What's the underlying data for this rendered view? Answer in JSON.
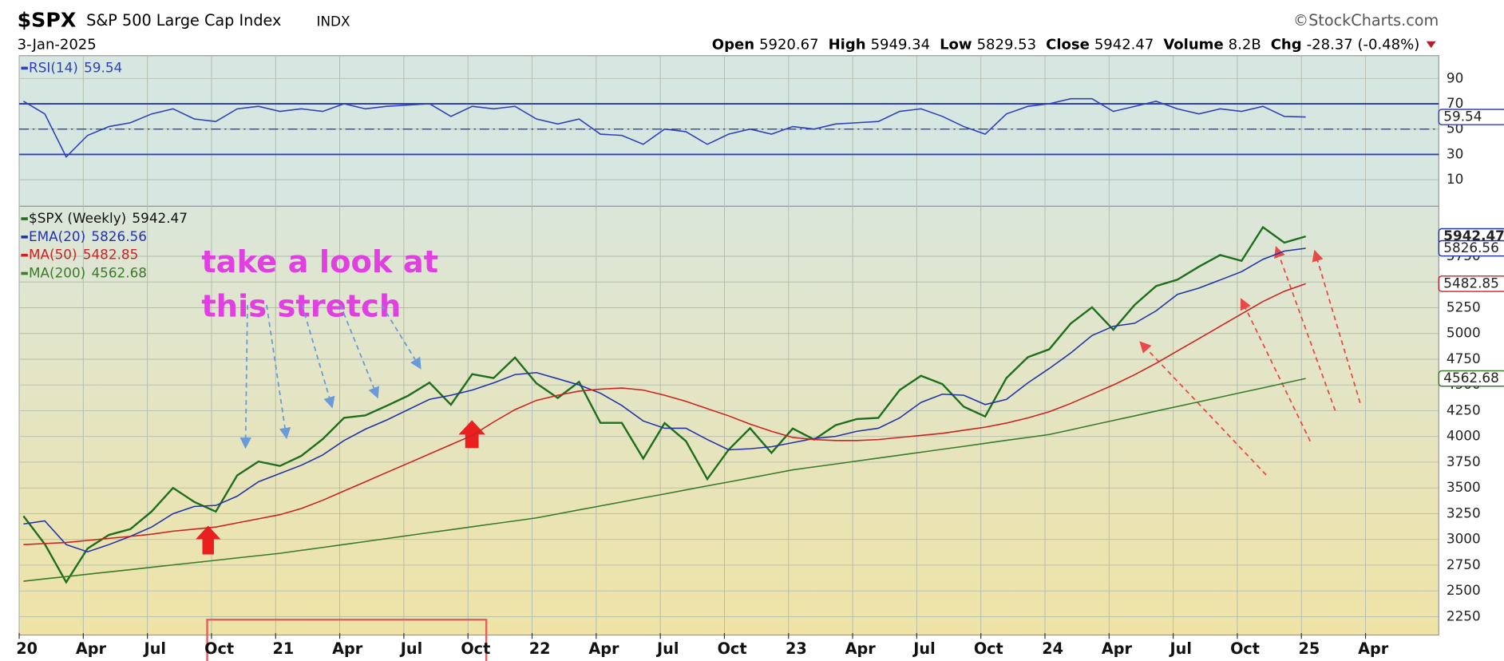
{
  "header": {
    "symbol": "$SPX",
    "name": "S&P 500 Large Cap Index",
    "exchange": "INDX",
    "date": "3-Jan-2025",
    "source": "©StockCharts.com",
    "quote": [
      {
        "label": "Open",
        "value": 5920.67
      },
      {
        "label": "High",
        "value": 5949.34
      },
      {
        "label": "Low",
        "value": 5829.53
      },
      {
        "label": "Close",
        "value": 5942.47
      },
      {
        "label": "Volume",
        "value": "8.2B"
      },
      {
        "label": "Chg",
        "value": "-28.37 (-0.48%)"
      }
    ]
  },
  "annotation": [
    "take a look at",
    "this stretch"
  ],
  "chart_data": [
    {
      "type": "line",
      "x": [
        "2020-01",
        "2020-02",
        "2020-03",
        "2020-04",
        "2020-05",
        "2020-06",
        "2020-07",
        "2020-08",
        "2020-09",
        "2020-10",
        "2020-11",
        "2020-12",
        "2021-01",
        "2021-02",
        "2021-03",
        "2021-04",
        "2021-05",
        "2021-06",
        "2021-07",
        "2021-08",
        "2021-09",
        "2021-10",
        "2021-11",
        "2021-12",
        "2022-01",
        "2022-02",
        "2022-03",
        "2022-04",
        "2022-05",
        "2022-06",
        "2022-07",
        "2022-08",
        "2022-09",
        "2022-10",
        "2022-11",
        "2022-12",
        "2023-01",
        "2023-02",
        "2023-03",
        "2023-04",
        "2023-05",
        "2023-06",
        "2023-07",
        "2023-08",
        "2023-09",
        "2023-10",
        "2023-11",
        "2023-12",
        "2024-01",
        "2024-02",
        "2024-03",
        "2024-04",
        "2024-05",
        "2024-06",
        "2024-07",
        "2024-08",
        "2024-09",
        "2024-10",
        "2024-11",
        "2024-12",
        "2025-01"
      ],
      "series": [
        {
          "name": "RSI(14)",
          "color": "#3040b8",
          "values": [
            72,
            62,
            28,
            45,
            52,
            55,
            62,
            66,
            58,
            56,
            66,
            68,
            64,
            66,
            64,
            70,
            66,
            68,
            69,
            70,
            60,
            68,
            66,
            68,
            58,
            54,
            58,
            46,
            45,
            38,
            50,
            48,
            38,
            46,
            50,
            46,
            52,
            50,
            54,
            55,
            56,
            64,
            66,
            60,
            52,
            46,
            62,
            68,
            70,
            74,
            74,
            64,
            68,
            72,
            66,
            62,
            66,
            64,
            68,
            60,
            59.54
          ]
        }
      ],
      "ylim": [
        -11,
        108
      ],
      "yticks": [
        10,
        30,
        50,
        70,
        90
      ],
      "reference_lines": [
        30,
        50,
        70
      ],
      "grid": true
    },
    {
      "type": "line",
      "x": [
        "2020-01",
        "2020-02",
        "2020-03",
        "2020-04",
        "2020-05",
        "2020-06",
        "2020-07",
        "2020-08",
        "2020-09",
        "2020-10",
        "2020-11",
        "2020-12",
        "2021-01",
        "2021-02",
        "2021-03",
        "2021-04",
        "2021-05",
        "2021-06",
        "2021-07",
        "2021-08",
        "2021-09",
        "2021-10",
        "2021-11",
        "2021-12",
        "2022-01",
        "2022-02",
        "2022-03",
        "2022-04",
        "2022-05",
        "2022-06",
        "2022-07",
        "2022-08",
        "2022-09",
        "2022-10",
        "2022-11",
        "2022-12",
        "2023-01",
        "2023-02",
        "2023-03",
        "2023-04",
        "2023-05",
        "2023-06",
        "2023-07",
        "2023-08",
        "2023-09",
        "2023-10",
        "2023-11",
        "2023-12",
        "2024-01",
        "2024-02",
        "2024-03",
        "2024-04",
        "2024-05",
        "2024-06",
        "2024-07",
        "2024-08",
        "2024-09",
        "2024-10",
        "2024-11",
        "2024-12",
        "2025-01"
      ],
      "series": [
        {
          "name": "$SPX (Weekly)",
          "color": "#1f6e1f",
          "values": [
            3226,
            2954,
            2585,
            2912,
            3044,
            3100,
            3271,
            3500,
            3363,
            3270,
            3622,
            3756,
            3714,
            3811,
            3973,
            4181,
            4204,
            4298,
            4395,
            4523,
            4308,
            4605,
            4567,
            4766,
            4516,
            4374,
            4530,
            4132,
            4132,
            3785,
            4130,
            3955,
            3586,
            3872,
            4080,
            3840,
            4077,
            3970,
            4109,
            4169,
            4180,
            4450,
            4589,
            4508,
            4288,
            4194,
            4568,
            4770,
            4846,
            5096,
            5254,
            5036,
            5278,
            5460,
            5522,
            5648,
            5762,
            5705,
            6032,
            5882,
            5942.47
          ]
        },
        {
          "name": "EMA(20)",
          "color": "#2233aa",
          "values": [
            3150,
            3180,
            2950,
            2880,
            2950,
            3030,
            3120,
            3250,
            3320,
            3330,
            3420,
            3560,
            3640,
            3720,
            3820,
            3960,
            4070,
            4160,
            4260,
            4360,
            4400,
            4450,
            4520,
            4600,
            4620,
            4560,
            4500,
            4420,
            4300,
            4150,
            4080,
            4080,
            3970,
            3870,
            3880,
            3900,
            3940,
            3980,
            4000,
            4050,
            4080,
            4180,
            4330,
            4410,
            4400,
            4310,
            4360,
            4520,
            4660,
            4810,
            4980,
            5070,
            5100,
            5220,
            5380,
            5440,
            5520,
            5600,
            5720,
            5800,
            5826.56
          ]
        },
        {
          "name": "MA(50)",
          "color": "#cc2222",
          "values": [
            2950,
            2960,
            2970,
            2990,
            3010,
            3030,
            3050,
            3080,
            3100,
            3120,
            3160,
            3200,
            3240,
            3300,
            3380,
            3470,
            3560,
            3650,
            3740,
            3830,
            3920,
            4010,
            4140,
            4260,
            4350,
            4400,
            4440,
            4460,
            4470,
            4450,
            4400,
            4340,
            4270,
            4200,
            4120,
            4050,
            3990,
            3970,
            3960,
            3960,
            3970,
            3990,
            4010,
            4030,
            4060,
            4090,
            4130,
            4180,
            4240,
            4320,
            4410,
            4500,
            4600,
            4710,
            4830,
            4950,
            5070,
            5190,
            5310,
            5410,
            5482.85
          ]
        },
        {
          "name": "MA(200)",
          "color": "#3a7a2a",
          "values": [
            2594,
            2617,
            2639,
            2662,
            2684,
            2707,
            2730,
            2752,
            2775,
            2797,
            2820,
            2843,
            2865,
            2894,
            2922,
            2951,
            2980,
            3008,
            3037,
            3066,
            3094,
            3123,
            3152,
            3180,
            3209,
            3248,
            3287,
            3325,
            3364,
            3403,
            3442,
            3481,
            3520,
            3558,
            3597,
            3636,
            3675,
            3704,
            3732,
            3761,
            3790,
            3818,
            3847,
            3876,
            3904,
            3933,
            3962,
            3990,
            4019,
            4064,
            4110,
            4155,
            4200,
            4246,
            4291,
            4336,
            4381,
            4427,
            4472,
            4517,
            4562.68
          ]
        }
      ],
      "ylim": [
        2090,
        6235
      ],
      "yticks": [
        2250,
        2500,
        2750,
        3000,
        3250,
        3500,
        3750,
        4000,
        4250,
        4500,
        4750,
        5000,
        5250,
        5500,
        5750
      ],
      "xticks": [
        {
          "value": "2020-01",
          "label": "20"
        },
        {
          "value": "2020-04",
          "label": "Apr"
        },
        {
          "value": "2020-07",
          "label": "Jul"
        },
        {
          "value": "2020-10",
          "label": "Oct"
        },
        {
          "value": "2021-01",
          "label": "21"
        },
        {
          "value": "2021-04",
          "label": "Apr"
        },
        {
          "value": "2021-07",
          "label": "Jul"
        },
        {
          "value": "2021-10",
          "label": "Oct"
        },
        {
          "value": "2022-01",
          "label": "22"
        },
        {
          "value": "2022-04",
          "label": "Apr"
        },
        {
          "value": "2022-07",
          "label": "Jul"
        },
        {
          "value": "2022-10",
          "label": "Oct"
        },
        {
          "value": "2023-01",
          "label": "23"
        },
        {
          "value": "2023-04",
          "label": "Apr"
        },
        {
          "value": "2023-07",
          "label": "Jul"
        },
        {
          "value": "2023-10",
          "label": "Oct"
        },
        {
          "value": "2024-01",
          "label": "24"
        },
        {
          "value": "2024-04",
          "label": "Apr"
        },
        {
          "value": "2024-07",
          "label": "Jul"
        },
        {
          "value": "2024-10",
          "label": "Oct"
        },
        {
          "value": "2025-01",
          "label": "25"
        },
        {
          "value": "2025-04",
          "label": "Apr"
        }
      ],
      "grid": true
    }
  ]
}
